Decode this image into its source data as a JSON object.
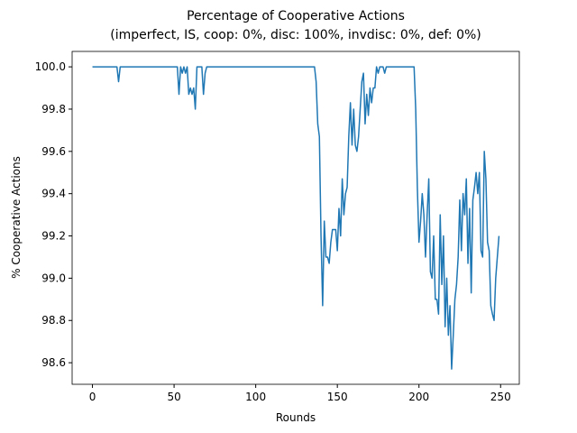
{
  "chart_data": {
    "type": "line",
    "title": "Percentage of Cooperative Actions",
    "subtitle": "(imperfect, IS, coop: 0%, disc: 100%, invdisc: 0%, def: 0%)",
    "x_label": "Rounds",
    "y_label": "% Cooperative Actions",
    "x": [
      0,
      1,
      2,
      3,
      4,
      5,
      6,
      7,
      8,
      9,
      10,
      11,
      12,
      13,
      14,
      15,
      16,
      17,
      18,
      19,
      20,
      21,
      22,
      23,
      24,
      25,
      26,
      27,
      28,
      29,
      30,
      31,
      32,
      33,
      34,
      35,
      36,
      37,
      38,
      39,
      40,
      41,
      42,
      43,
      44,
      45,
      46,
      47,
      48,
      49,
      50,
      51,
      52,
      53,
      54,
      55,
      56,
      57,
      58,
      59,
      60,
      61,
      62,
      63,
      64,
      65,
      66,
      67,
      68,
      69,
      70,
      71,
      72,
      73,
      74,
      75,
      76,
      77,
      78,
      79,
      80,
      81,
      82,
      83,
      84,
      85,
      86,
      87,
      88,
      89,
      90,
      91,
      92,
      93,
      94,
      95,
      96,
      97,
      98,
      99,
      100,
      101,
      102,
      103,
      104,
      105,
      106,
      107,
      108,
      109,
      110,
      111,
      112,
      113,
      114,
      115,
      116,
      117,
      118,
      119,
      120,
      121,
      122,
      123,
      124,
      125,
      126,
      127,
      128,
      129,
      130,
      131,
      132,
      133,
      134,
      135,
      136,
      137,
      138,
      139,
      140,
      141,
      142,
      143,
      144,
      145,
      146,
      147,
      148,
      149,
      150,
      151,
      152,
      153,
      154,
      155,
      156,
      157,
      158,
      159,
      160,
      161,
      162,
      163,
      164,
      165,
      166,
      167,
      168,
      169,
      170,
      171,
      172,
      173,
      174,
      175,
      176,
      177,
      178,
      179,
      180,
      181,
      182,
      183,
      184,
      185,
      186,
      187,
      188,
      189,
      190,
      191,
      192,
      193,
      194,
      195,
      196,
      197,
      198,
      199,
      200,
      201,
      202,
      203,
      204,
      205,
      206,
      207,
      208,
      209,
      210,
      211,
      212,
      213,
      214,
      215,
      216,
      217,
      218,
      219,
      220,
      221,
      222,
      223,
      224,
      225,
      226,
      227,
      228,
      229,
      230,
      231,
      232,
      233,
      234,
      235,
      236,
      237,
      238,
      239,
      240,
      241,
      242,
      243,
      244,
      245,
      246,
      247,
      248,
      249
    ],
    "series": [
      {
        "color": "#1f77b4",
        "values": [
          100,
          100,
          100,
          100,
          100,
          100,
          100,
          100,
          100,
          100,
          100,
          100,
          100,
          100,
          100,
          100,
          99.93,
          100,
          100,
          100,
          100,
          100,
          100,
          100,
          100,
          100,
          100,
          100,
          100,
          100,
          100,
          100,
          100,
          100,
          100,
          100,
          100,
          100,
          100,
          100,
          100,
          100,
          100,
          100,
          100,
          100,
          100,
          100,
          100,
          100,
          100,
          100,
          100,
          99.87,
          100,
          99.97,
          100,
          99.97,
          100,
          99.87,
          99.9,
          99.87,
          99.9,
          99.8,
          100,
          100,
          100,
          100,
          99.87,
          99.97,
          100,
          100,
          100,
          100,
          100,
          100,
          100,
          100,
          100,
          100,
          100,
          100,
          100,
          100,
          100,
          100,
          100,
          100,
          100,
          100,
          100,
          100,
          100,
          100,
          100,
          100,
          100,
          100,
          100,
          100,
          100,
          100,
          100,
          100,
          100,
          100,
          100,
          100,
          100,
          100,
          100,
          100,
          100,
          100,
          100,
          100,
          100,
          100,
          100,
          100,
          100,
          100,
          100,
          100,
          100,
          100,
          100,
          100,
          100,
          100,
          100,
          100,
          100,
          100,
          100,
          100,
          100,
          99.93,
          99.73,
          99.67,
          99.2,
          98.87,
          99.27,
          99.1,
          99.1,
          99.07,
          99.17,
          99.23,
          99.23,
          99.23,
          99.13,
          99.33,
          99.2,
          99.47,
          99.3,
          99.4,
          99.43,
          99.67,
          99.83,
          99.63,
          99.8,
          99.63,
          99.6,
          99.67,
          99.8,
          99.93,
          99.97,
          99.73,
          99.87,
          99.77,
          99.9,
          99.83,
          99.9,
          99.9,
          100,
          99.97,
          100,
          100,
          100,
          99.97,
          100,
          100,
          100,
          100,
          100,
          100,
          100,
          100,
          100,
          100,
          100,
          100,
          100,
          100,
          100,
          100,
          100,
          100,
          99.8,
          99.43,
          99.17,
          99.27,
          99.4,
          99.3,
          99.1,
          99.3,
          99.47,
          99.03,
          99.0,
          99.2,
          98.9,
          98.9,
          98.83,
          99.3,
          98.97,
          99.2,
          98.77,
          99.0,
          98.73,
          98.87,
          98.57,
          98.73,
          98.9,
          98.97,
          99.1,
          99.37,
          99.13,
          99.4,
          99.3,
          99.47,
          99.07,
          99.33,
          98.93,
          99.37,
          99.43,
          99.5,
          99.4,
          99.5,
          99.13,
          99.1,
          99.6,
          99.47,
          99.17,
          99.13,
          98.87,
          98.83,
          98.8,
          99.0,
          99.1,
          99.2
        ]
      }
    ],
    "xlim": [
      -12.45,
      261.45
    ],
    "xticks": [
      0,
      50,
      100,
      150,
      200,
      250
    ],
    "ylim": [
      98.498,
      100.073
    ],
    "yticks": [
      98.6,
      98.8,
      {
        "value": 99,
        "label": "99.0"
      },
      99.2,
      99.4,
      99.6,
      99.8,
      {
        "value": 100,
        "label": "100.0"
      }
    ],
    "grid": false
  }
}
